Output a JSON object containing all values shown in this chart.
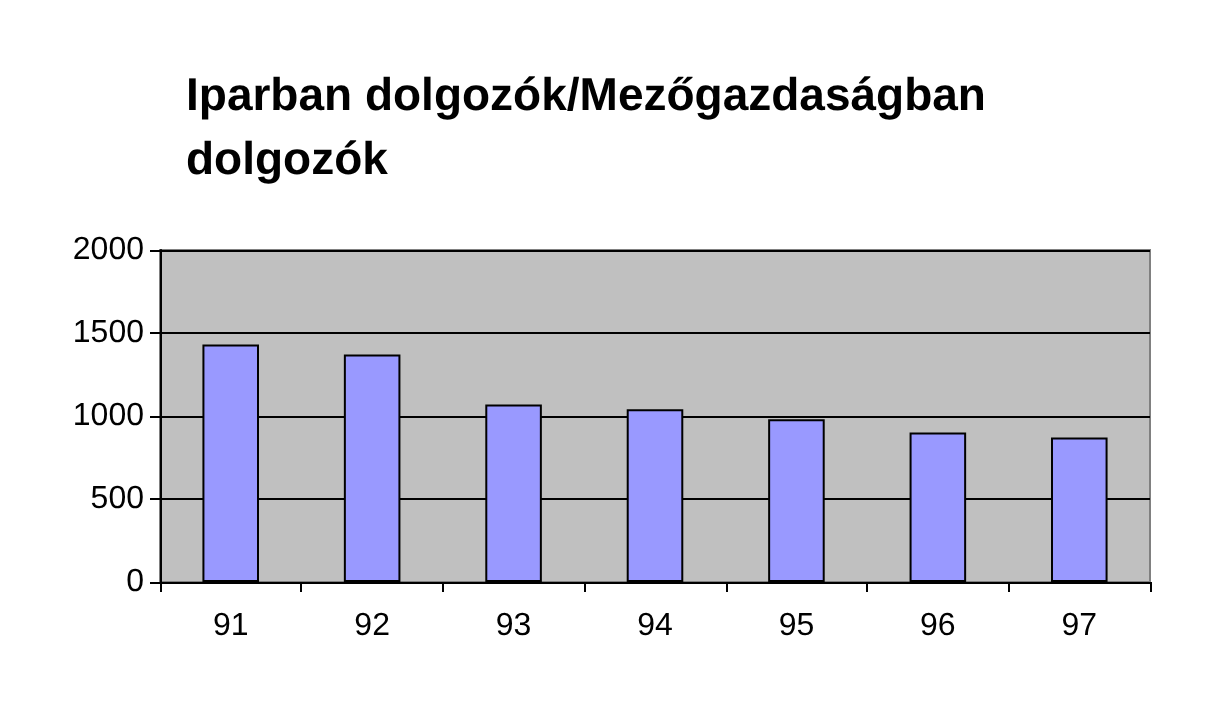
{
  "chart_data": {
    "type": "bar",
    "title": "Iparban dolgozók/Mezőgazdaságban\ndolgozók",
    "categories": [
      "91",
      "92",
      "93",
      "94",
      "95",
      "96",
      "97"
    ],
    "values": [
      1430,
      1370,
      1070,
      1040,
      980,
      900,
      870
    ],
    "color": "#9999ff",
    "ylim": [
      0,
      2000
    ],
    "yticks": [
      0,
      500,
      1000,
      1500,
      2000
    ],
    "grid": "y"
  }
}
